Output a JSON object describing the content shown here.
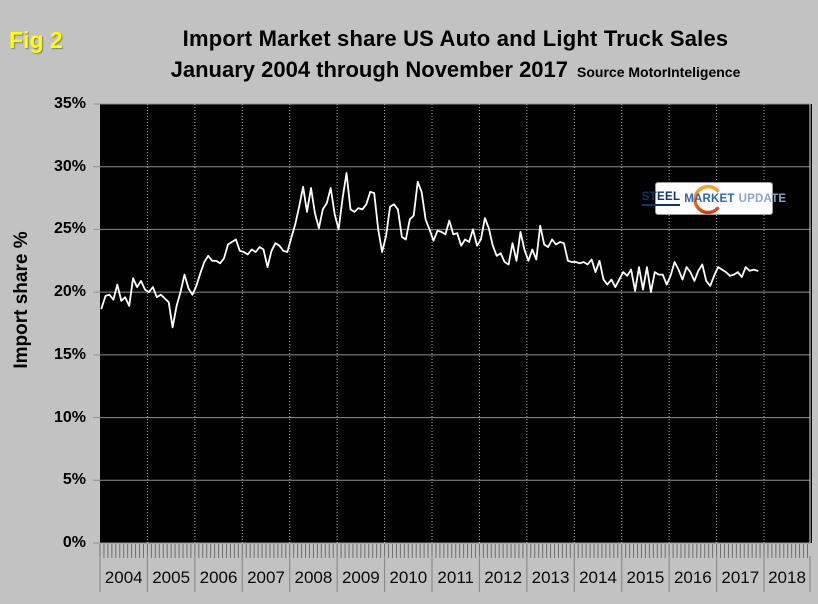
{
  "figure_label": "Fig 2",
  "title": {
    "line1": "Import Market share US Auto and Light Truck Sales",
    "line2": "January 2004 through November 2017",
    "source": "Source MotorInteligence"
  },
  "y_axis": {
    "title": "Import share %",
    "tick_labels": [
      "35%",
      "30%",
      "25%",
      "20%",
      "15%",
      "10%",
      "5%",
      "0%"
    ]
  },
  "x_axis": {
    "year_labels": [
      "2004",
      "2005",
      "2006",
      "2007",
      "2008",
      "2009",
      "2010",
      "2011",
      "2012",
      "2013",
      "2014",
      "2015",
      "2016",
      "2017",
      "2018"
    ]
  },
  "logo": {
    "steel": "STEEL",
    "market": "MARKET",
    "update": "UPDATE"
  },
  "colors": {
    "background": "#c2c2c2",
    "plot_background": "#000000",
    "line": "#ffffff",
    "gridline": "#909090",
    "year_gridline_dotted": "#b5b5b5",
    "fig_label": "#ffff00",
    "title_text": "#000000",
    "logo_steel": "#14356b",
    "logo_market": "#2f66ad",
    "logo_update": "#8ba6cb",
    "logo_crescent_top": "#f7a832",
    "logo_crescent_bottom": "#d33c15"
  },
  "chart_data": {
    "type": "line",
    "title": "Import Market share US Auto and Light Truck Sales",
    "subtitle": "January 2004 through November 2017",
    "source": "MotorInteligence",
    "x_frequency": "monthly",
    "x_start": "2004-01",
    "x_end": "2017-11",
    "xlabel": "",
    "ylabel": "Import share %",
    "ylim": [
      0,
      35
    ],
    "y_tick_step": 5,
    "y_unit": "%",
    "grid": true,
    "legend": false,
    "series": [
      {
        "name": "Import share %",
        "values": [
          18.7,
          19.7,
          19.8,
          19.4,
          20.6,
          19.3,
          19.6,
          18.9,
          21.1,
          20.4,
          20.9,
          20.2,
          20.0,
          20.4,
          19.6,
          19.8,
          19.5,
          19.2,
          17.2,
          18.9,
          20.0,
          21.4,
          20.3,
          19.8,
          20.5,
          21.5,
          22.4,
          22.9,
          22.5,
          22.5,
          22.3,
          22.7,
          23.8,
          24.0,
          24.2,
          23.3,
          23.2,
          23.0,
          23.4,
          23.2,
          23.6,
          23.4,
          22.0,
          23.3,
          23.9,
          23.7,
          23.3,
          23.2,
          24.3,
          25.4,
          26.8,
          28.4,
          26.4,
          28.3,
          26.3,
          25.1,
          26.6,
          27.1,
          28.3,
          26.2,
          25.0,
          27.5,
          29.5,
          26.6,
          26.4,
          26.7,
          26.6,
          27.0,
          28.0,
          27.9,
          25.0,
          23.2,
          24.5,
          26.8,
          27.0,
          26.6,
          24.4,
          24.2,
          25.8,
          26.1,
          28.8,
          28.0,
          25.8,
          25.0,
          24.1,
          24.9,
          24.8,
          24.6,
          25.7,
          24.6,
          24.7,
          23.7,
          24.2,
          24.0,
          25.0,
          23.7,
          24.2,
          25.9,
          25.1,
          23.7,
          22.9,
          23.1,
          22.4,
          22.2,
          23.9,
          22.5,
          24.8,
          23.4,
          22.5,
          23.4,
          22.6,
          25.3,
          23.8,
          23.6,
          24.2,
          23.8,
          24.0,
          23.9,
          22.5,
          22.4,
          22.4,
          22.3,
          22.4,
          22.2,
          22.6,
          21.6,
          22.5,
          21.0,
          20.6,
          21.0,
          20.4,
          21.0,
          21.6,
          21.3,
          21.8,
          20.1,
          22.0,
          20.2,
          22.0,
          20.0,
          21.6,
          21.4,
          21.4,
          20.6,
          21.3,
          22.4,
          21.8,
          21.0,
          22.0,
          21.6,
          20.9,
          21.7,
          22.2,
          20.9,
          20.5,
          21.3,
          22.0,
          21.8,
          21.6,
          21.3,
          21.4,
          21.6,
          21.2,
          22.0,
          21.7,
          21.8,
          21.7
        ]
      }
    ]
  }
}
